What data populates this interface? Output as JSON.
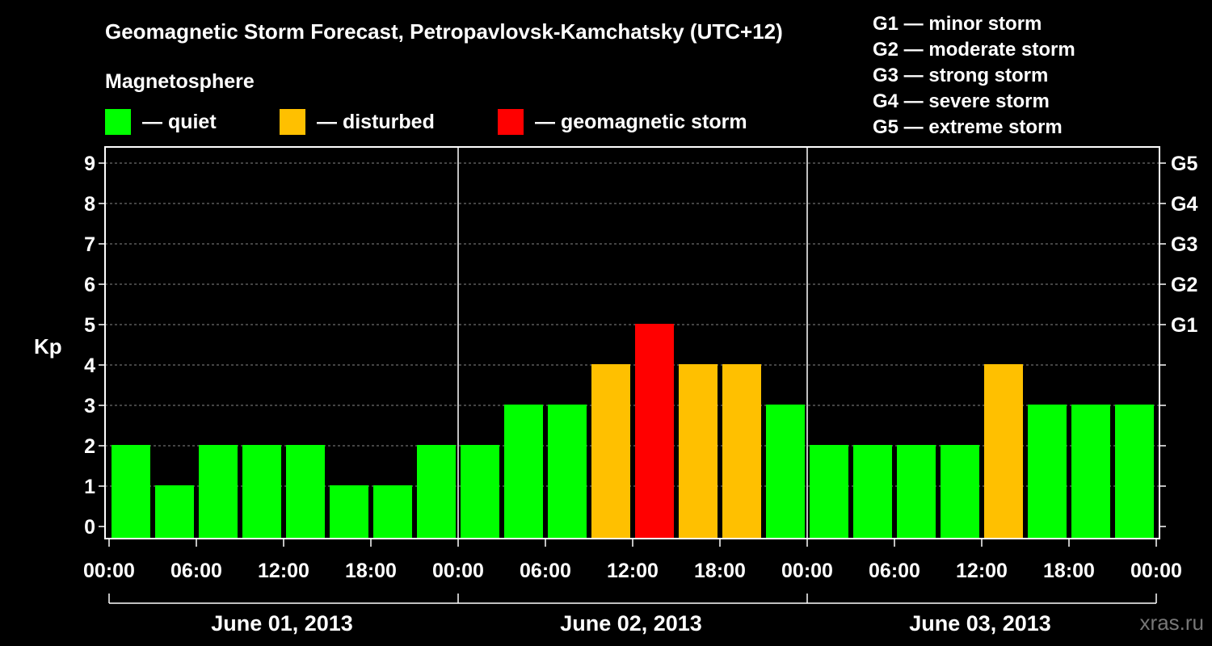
{
  "title": "Geomagnetic Storm Forecast, Petropavlovsk-Kamchatsky (UTC+12)",
  "legend": {
    "heading": "Magnetosphere",
    "items": [
      {
        "label": "— quiet",
        "color": "#00ff00"
      },
      {
        "label": "— disturbed",
        "color": "#ffc000"
      },
      {
        "label": "— geomagnetic storm",
        "color": "#ff0000"
      }
    ]
  },
  "storm_scale": [
    "G1 — minor storm",
    "G2 — moderate storm",
    "G3 — strong storm",
    "G4 — severe storm",
    "G5 — extreme storm"
  ],
  "watermark": "xras.ru",
  "chart_data": {
    "type": "bar",
    "title": "Geomagnetic Storm Forecast, Petropavlovsk-Kamchatsky (UTC+12)",
    "ylabel": "Kp",
    "ylim": [
      0,
      9
    ],
    "yticks": [
      "0",
      "1",
      "2",
      "3",
      "4",
      "5",
      "6",
      "7",
      "8",
      "9"
    ],
    "right_axis": [
      {
        "kp": 5,
        "label": "G1"
      },
      {
        "kp": 6,
        "label": "G2"
      },
      {
        "kp": 7,
        "label": "G3"
      },
      {
        "kp": 8,
        "label": "G4"
      },
      {
        "kp": 9,
        "label": "G5"
      }
    ],
    "xticks": [
      "00:00",
      "06:00",
      "12:00",
      "18:00",
      "00:00",
      "06:00",
      "12:00",
      "18:00",
      "00:00",
      "06:00",
      "12:00",
      "18:00",
      "00:00"
    ],
    "days": [
      "June 01, 2013",
      "June 02, 2013",
      "June 03, 2013"
    ],
    "values": [
      2,
      1,
      2,
      2,
      2,
      1,
      1,
      2,
      2,
      3,
      3,
      4,
      5,
      4,
      4,
      3,
      2,
      2,
      2,
      2,
      4,
      3,
      3,
      3
    ],
    "colors": {
      "quiet": "#00ff00",
      "disturbed": "#ffc000",
      "storm": "#ff0000"
    },
    "thresholds": {
      "disturbed": 4,
      "storm": 5
    }
  }
}
